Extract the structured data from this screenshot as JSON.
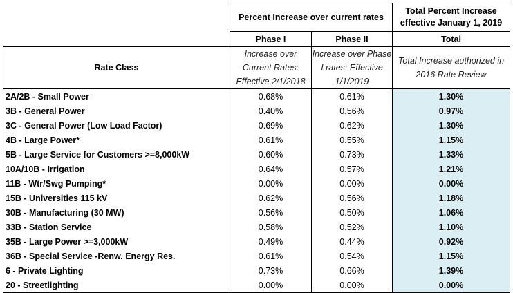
{
  "header": {
    "group_title": "Percent Increase over current rates",
    "total_title": "Total Percent Increase effective January 1, 2019",
    "phase1": "Phase I",
    "phase2": "Phase II",
    "total": "Total",
    "rate_class": "Rate Class",
    "phase1_desc": "Increase over Current Rates: Effective 2/1/2018",
    "phase2_desc": "Increase over Phase I rates: Effective 1/1/2019",
    "total_desc": "Total Increase authorized in 2016 Rate Review"
  },
  "rows": [
    {
      "name": "2A/2B - Small Power",
      "p1": "0.68%",
      "p2": "0.61%",
      "total": "1.30%"
    },
    {
      "name": "3B - General Power",
      "p1": "0.40%",
      "p2": "0.56%",
      "total": "0.97%"
    },
    {
      "name": "3C - General Power (Low Load Factor)",
      "p1": "0.69%",
      "p2": "0.62%",
      "total": "1.30%"
    },
    {
      "name": "4B - Large Power*",
      "p1": "0.61%",
      "p2": "0.55%",
      "total": "1.15%"
    },
    {
      "name": "5B - Large Service for Customers >=8,000kW",
      "p1": "0.60%",
      "p2": "0.73%",
      "total": "1.33%"
    },
    {
      "name": "10A/10B - Irrigation",
      "p1": "0.64%",
      "p2": "0.57%",
      "total": "1.21%"
    },
    {
      "name": "11B - Wtr/Swg Pumping*",
      "p1": "0.00%",
      "p2": "0.00%",
      "total": "0.00%"
    },
    {
      "name": "15B - Universities 115 kV",
      "p1": "0.62%",
      "p2": "0.56%",
      "total": "1.18%"
    },
    {
      "name": "30B - Manufacturing (30 MW)",
      "p1": "0.56%",
      "p2": "0.50%",
      "total": "1.06%"
    },
    {
      "name": "33B - Station Service",
      "p1": "0.58%",
      "p2": "0.52%",
      "total": "1.10%"
    },
    {
      "name": "35B - Large Power >=3,000kW",
      "p1": "0.49%",
      "p2": "0.44%",
      "total": "0.92%"
    },
    {
      "name": "36B - Special Service -Renw. Energy Res.",
      "p1": "0.61%",
      "p2": "0.54%",
      "total": "1.15%"
    },
    {
      "name": "6 - Private Lighting",
      "p1": "0.73%",
      "p2": "0.66%",
      "total": "1.39%"
    },
    {
      "name": "20 - Streetlighting",
      "p1": "0.00%",
      "p2": "0.00%",
      "total": "0.00%"
    }
  ]
}
